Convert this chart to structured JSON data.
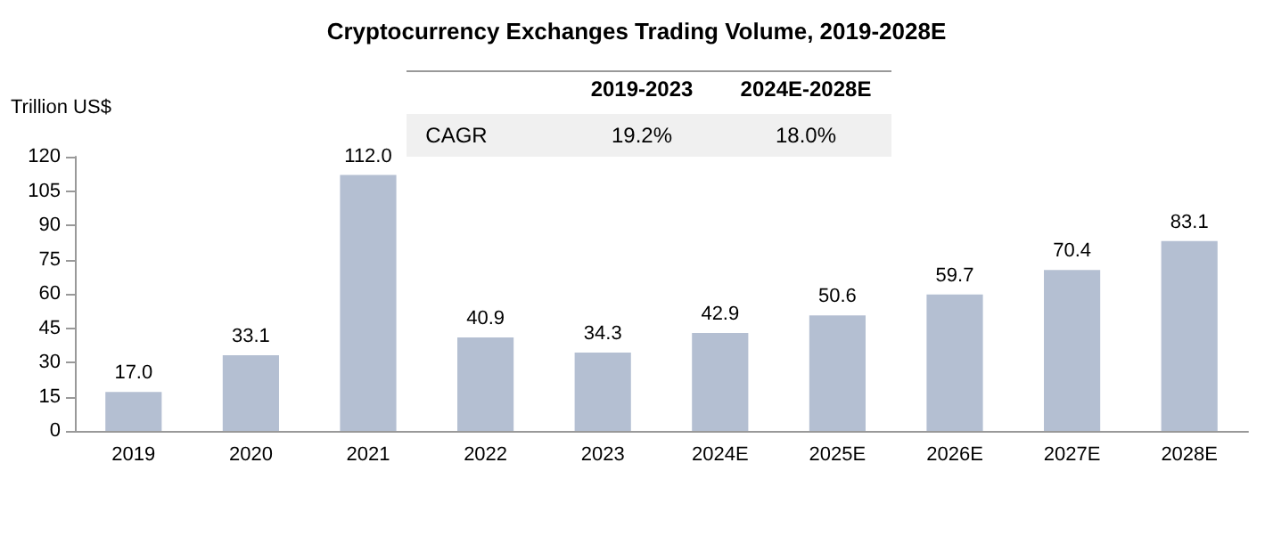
{
  "chart_data": {
    "type": "bar",
    "title": "Cryptocurrency Exchanges Trading Volume, 2019-2028E",
    "ylabel": "Trillion US$",
    "categories": [
      "2019",
      "2020",
      "2021",
      "2022",
      "2023",
      "2024E",
      "2025E",
      "2026E",
      "2027E",
      "2028E"
    ],
    "values": [
      17.0,
      33.1,
      112.0,
      40.9,
      34.3,
      42.9,
      50.6,
      59.7,
      70.4,
      83.1
    ],
    "color": "#b4bfd2",
    "value_labels": [
      "17.0",
      "33.1",
      "112.0",
      "40.9",
      "34.3",
      "42.9",
      "50.6",
      "59.7",
      "70.4",
      "83.1"
    ],
    "ylim": [
      0,
      120
    ],
    "yticks": [
      0,
      15,
      30,
      45,
      60,
      75,
      90,
      105,
      120
    ],
    "grid": false,
    "annotations": [
      "2019-2023",
      "2024E-2028E",
      "CAGR",
      "19.2%",
      "18.0%"
    ]
  }
}
